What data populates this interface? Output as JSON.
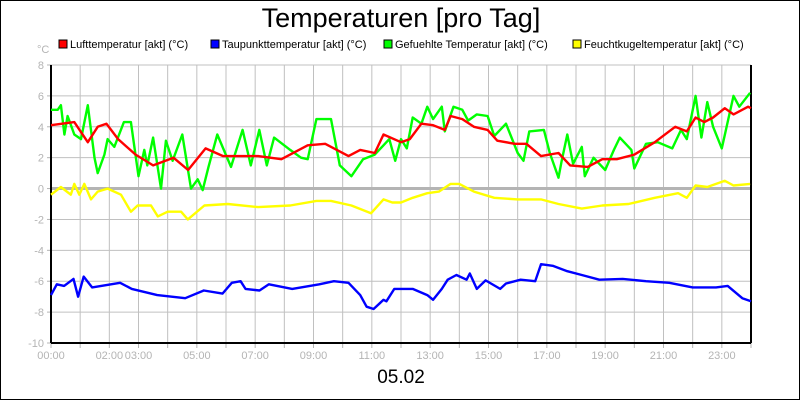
{
  "chart_data": {
    "type": "line",
    "title": "Temperaturen [pro Tag]",
    "xlabel": "05.02",
    "ylabel": "°C",
    "ylim": [
      -10,
      8
    ],
    "yticks": [
      8,
      6,
      4,
      2,
      0,
      -2,
      -4,
      -6,
      -8,
      -10
    ],
    "xlim_hours": [
      0,
      24
    ],
    "xticks": [
      {
        "h": 0,
        "label": "00:00"
      },
      {
        "h": 2,
        "label": "02:00"
      },
      {
        "h": 3,
        "label": "03:00"
      },
      {
        "h": 5,
        "label": "05:00"
      },
      {
        "h": 7,
        "label": "07:00"
      },
      {
        "h": 9,
        "label": "09:00"
      },
      {
        "h": 11,
        "label": "11:00"
      },
      {
        "h": 13,
        "label": "13:00"
      },
      {
        "h": 15,
        "label": "15:00"
      },
      {
        "h": 17,
        "label": "17:00"
      },
      {
        "h": 19,
        "label": "19:00"
      },
      {
        "h": 21,
        "label": "21:00"
      },
      {
        "h": 23,
        "label": "23:00"
      }
    ],
    "grid": true,
    "legend_position": "top",
    "series": [
      {
        "name": "Lufttemperatur [akt] (°C)",
        "color": "#ff0000",
        "points": [
          [
            0,
            4.1
          ],
          [
            0.8,
            4.3
          ],
          [
            1.26,
            3.0
          ],
          [
            1.6,
            4.0
          ],
          [
            1.9,
            4.2
          ],
          [
            2.3,
            3.2
          ],
          [
            2.6,
            2.7
          ],
          [
            2.9,
            2.2
          ],
          [
            3.5,
            1.5
          ],
          [
            4.2,
            2.0
          ],
          [
            4.7,
            1.2
          ],
          [
            5.3,
            2.6
          ],
          [
            5.9,
            2.1
          ],
          [
            7.1,
            2.1
          ],
          [
            7.9,
            1.9
          ],
          [
            8.8,
            2.8
          ],
          [
            9.4,
            2.9
          ],
          [
            10.2,
            2.1
          ],
          [
            10.6,
            2.5
          ],
          [
            11.1,
            2.3
          ],
          [
            11.4,
            3.5
          ],
          [
            12.0,
            3.0
          ],
          [
            12.3,
            3.2
          ],
          [
            12.7,
            4.2
          ],
          [
            13.1,
            4.1
          ],
          [
            13.5,
            3.8
          ],
          [
            13.7,
            4.7
          ],
          [
            14.1,
            4.5
          ],
          [
            14.5,
            4.0
          ],
          [
            14.97,
            3.8
          ],
          [
            15.3,
            3.1
          ],
          [
            15.9,
            2.9
          ],
          [
            16.3,
            2.9
          ],
          [
            16.8,
            2.1
          ],
          [
            17.4,
            2.3
          ],
          [
            17.8,
            1.5
          ],
          [
            18.4,
            1.4
          ],
          [
            18.9,
            1.9
          ],
          [
            19.4,
            1.9
          ],
          [
            20.0,
            2.2
          ],
          [
            20.7,
            3.0
          ],
          [
            21.4,
            4.0
          ],
          [
            21.8,
            3.7
          ],
          [
            22.1,
            4.6
          ],
          [
            22.4,
            4.3
          ],
          [
            22.7,
            4.6
          ],
          [
            23.1,
            5.2
          ],
          [
            23.4,
            4.8
          ],
          [
            23.9,
            5.3
          ],
          [
            24,
            5.2
          ]
        ]
      },
      {
        "name": "Taupunkttemperatur [akt] (°C)",
        "color": "#0000ff",
        "points": [
          [
            0,
            -6.9
          ],
          [
            0.2,
            -6.2
          ],
          [
            0.45,
            -6.3
          ],
          [
            0.77,
            -5.85
          ],
          [
            0.93,
            -7.0
          ],
          [
            1.12,
            -5.7
          ],
          [
            1.41,
            -6.4
          ],
          [
            2.37,
            -6.1
          ],
          [
            2.77,
            -6.5
          ],
          [
            3.64,
            -6.9
          ],
          [
            4.6,
            -7.1
          ],
          [
            5.24,
            -6.6
          ],
          [
            5.88,
            -6.8
          ],
          [
            6.2,
            -6.1
          ],
          [
            6.5,
            -6.0
          ],
          [
            6.67,
            -6.5
          ],
          [
            7.15,
            -6.6
          ],
          [
            7.47,
            -6.2
          ],
          [
            8.27,
            -6.5
          ],
          [
            9.2,
            -6.2
          ],
          [
            9.7,
            -6.0
          ],
          [
            10.2,
            -6.1
          ],
          [
            10.6,
            -6.9
          ],
          [
            10.82,
            -7.65
          ],
          [
            11.06,
            -7.8
          ],
          [
            11.4,
            -7.2
          ],
          [
            11.5,
            -7.3
          ],
          [
            11.77,
            -6.5
          ],
          [
            12.4,
            -6.5
          ],
          [
            12.9,
            -6.9
          ],
          [
            13.1,
            -7.2
          ],
          [
            13.4,
            -6.5
          ],
          [
            13.6,
            -5.9
          ],
          [
            13.9,
            -5.6
          ],
          [
            14.25,
            -5.9
          ],
          [
            14.36,
            -5.5
          ],
          [
            14.6,
            -6.5
          ],
          [
            14.9,
            -5.95
          ],
          [
            15.4,
            -6.5
          ],
          [
            15.6,
            -6.15
          ],
          [
            16.1,
            -5.9
          ],
          [
            16.6,
            -6.0
          ],
          [
            16.8,
            -4.9
          ],
          [
            17.2,
            -5.0
          ],
          [
            17.7,
            -5.35
          ],
          [
            18.2,
            -5.6
          ],
          [
            18.8,
            -5.9
          ],
          [
            19.6,
            -5.85
          ],
          [
            20.4,
            -6.0
          ],
          [
            21.2,
            -6.1
          ],
          [
            22.0,
            -6.4
          ],
          [
            22.8,
            -6.4
          ],
          [
            23.2,
            -6.3
          ],
          [
            23.7,
            -7.1
          ],
          [
            24,
            -7.3
          ]
        ]
      },
      {
        "name": "Gefuehlte Temperatur [akt] (°C)",
        "color": "#00ff00",
        "points": [
          [
            0,
            5.1
          ],
          [
            0.23,
            5.1
          ],
          [
            0.34,
            5.4
          ],
          [
            0.46,
            3.5
          ],
          [
            0.57,
            4.7
          ],
          [
            0.8,
            3.5
          ],
          [
            1.03,
            3.2
          ],
          [
            1.26,
            5.4
          ],
          [
            1.49,
            2.0
          ],
          [
            1.6,
            1.0
          ],
          [
            1.83,
            2.2
          ],
          [
            1.94,
            3.2
          ],
          [
            2.17,
            2.7
          ],
          [
            2.5,
            4.3
          ],
          [
            2.74,
            4.3
          ],
          [
            3.0,
            0.8
          ],
          [
            3.2,
            2.5
          ],
          [
            3.3,
            1.5
          ],
          [
            3.5,
            3.3
          ],
          [
            3.77,
            0.0
          ],
          [
            3.94,
            3.1
          ],
          [
            4.17,
            1.8
          ],
          [
            4.5,
            3.5
          ],
          [
            4.8,
            0.0
          ],
          [
            5.03,
            0.6
          ],
          [
            5.2,
            -0.1
          ],
          [
            5.4,
            1.4
          ],
          [
            5.7,
            3.5
          ],
          [
            6.17,
            1.4
          ],
          [
            6.57,
            3.8
          ],
          [
            6.85,
            1.5
          ],
          [
            7.14,
            3.8
          ],
          [
            7.4,
            1.5
          ],
          [
            7.65,
            3.3
          ],
          [
            8.2,
            2.5
          ],
          [
            8.57,
            2.0
          ],
          [
            8.8,
            1.9
          ],
          [
            9.1,
            4.5
          ],
          [
            9.6,
            4.5
          ],
          [
            9.9,
            1.5
          ],
          [
            10.3,
            0.8
          ],
          [
            10.7,
            1.9
          ],
          [
            11.1,
            2.2
          ],
          [
            11.6,
            3.2
          ],
          [
            11.8,
            1.8
          ],
          [
            12.0,
            3.2
          ],
          [
            12.2,
            2.6
          ],
          [
            12.4,
            4.6
          ],
          [
            12.7,
            4.2
          ],
          [
            12.9,
            5.3
          ],
          [
            13.1,
            4.5
          ],
          [
            13.4,
            5.3
          ],
          [
            13.5,
            3.7
          ],
          [
            13.8,
            5.3
          ],
          [
            14.1,
            5.1
          ],
          [
            14.3,
            4.4
          ],
          [
            14.6,
            4.8
          ],
          [
            14.97,
            4.7
          ],
          [
            15.2,
            3.4
          ],
          [
            15.6,
            4.2
          ],
          [
            16.0,
            2.3
          ],
          [
            16.2,
            1.8
          ],
          [
            16.4,
            3.7
          ],
          [
            16.9,
            3.8
          ],
          [
            17.1,
            2.3
          ],
          [
            17.4,
            0.7
          ],
          [
            17.5,
            1.7
          ],
          [
            17.7,
            3.5
          ],
          [
            17.9,
            1.6
          ],
          [
            18.2,
            2.7
          ],
          [
            18.3,
            0.8
          ],
          [
            18.6,
            2.0
          ],
          [
            19.0,
            1.2
          ],
          [
            19.3,
            2.5
          ],
          [
            19.5,
            3.3
          ],
          [
            19.9,
            2.5
          ],
          [
            20.0,
            1.3
          ],
          [
            20.4,
            2.9
          ],
          [
            20.8,
            3.0
          ],
          [
            21.3,
            2.6
          ],
          [
            21.6,
            3.8
          ],
          [
            21.8,
            3.2
          ],
          [
            22.1,
            6.0
          ],
          [
            22.3,
            3.3
          ],
          [
            22.5,
            5.6
          ],
          [
            22.7,
            4.0
          ],
          [
            23.0,
            2.6
          ],
          [
            23.4,
            6.0
          ],
          [
            23.6,
            5.3
          ],
          [
            23.97,
            6.2
          ]
        ]
      },
      {
        "name": "Feuchtkugeltemperatur [akt] (°C)",
        "color": "#ffff00",
        "points": [
          [
            0,
            -0.4
          ],
          [
            0.34,
            0.1
          ],
          [
            0.68,
            -0.4
          ],
          [
            0.8,
            0.3
          ],
          [
            0.97,
            -0.4
          ],
          [
            1.14,
            0.3
          ],
          [
            1.37,
            -0.7
          ],
          [
            1.6,
            -0.2
          ],
          [
            1.94,
            0.0
          ],
          [
            2.4,
            -0.4
          ],
          [
            2.74,
            -1.5
          ],
          [
            2.97,
            -1.1
          ],
          [
            3.43,
            -1.1
          ],
          [
            3.66,
            -1.8
          ],
          [
            4.0,
            -1.5
          ],
          [
            4.46,
            -1.5
          ],
          [
            4.69,
            -2.0
          ],
          [
            5.26,
            -1.1
          ],
          [
            6.06,
            -1.0
          ],
          [
            7.1,
            -1.2
          ],
          [
            8.2,
            -1.1
          ],
          [
            9.1,
            -0.8
          ],
          [
            9.6,
            -0.8
          ],
          [
            10.3,
            -1.1
          ],
          [
            10.97,
            -1.6
          ],
          [
            11.4,
            -0.7
          ],
          [
            11.7,
            -0.9
          ],
          [
            12.0,
            -0.9
          ],
          [
            12.4,
            -0.6
          ],
          [
            12.9,
            -0.3
          ],
          [
            13.3,
            -0.2
          ],
          [
            13.7,
            0.3
          ],
          [
            14.0,
            0.3
          ],
          [
            14.5,
            -0.2
          ],
          [
            15.2,
            -0.6
          ],
          [
            16.0,
            -0.7
          ],
          [
            16.8,
            -0.7
          ],
          [
            17.4,
            -1.0
          ],
          [
            18.2,
            -1.3
          ],
          [
            18.9,
            -1.1
          ],
          [
            19.8,
            -1.0
          ],
          [
            20.7,
            -0.6
          ],
          [
            21.5,
            -0.3
          ],
          [
            21.8,
            -0.6
          ],
          [
            22.1,
            0.2
          ],
          [
            22.5,
            0.1
          ],
          [
            23.1,
            0.5
          ],
          [
            23.4,
            0.2
          ],
          [
            23.97,
            0.3
          ]
        ]
      }
    ]
  }
}
